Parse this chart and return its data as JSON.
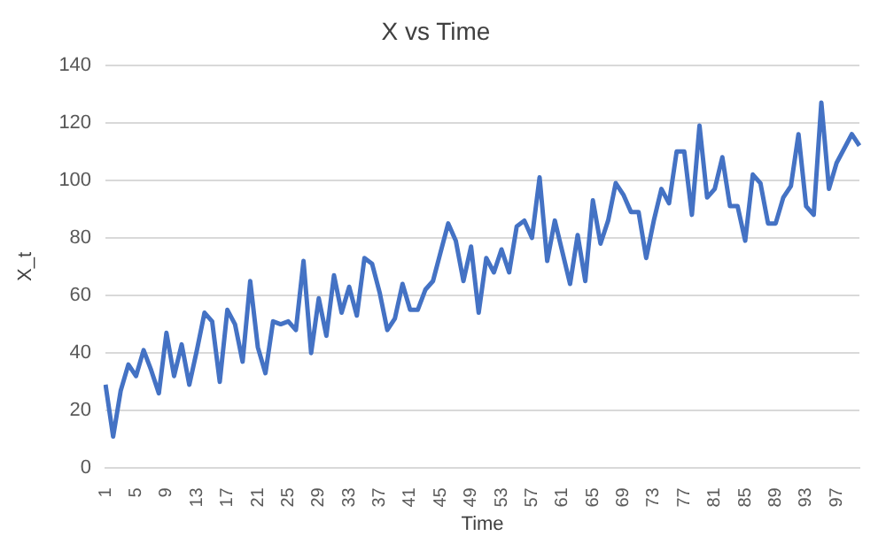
{
  "chart_data": {
    "type": "line",
    "title": "X vs Time",
    "xlabel": "Time",
    "ylabel": "X_t",
    "categories": [
      "1",
      null,
      null,
      null,
      "5",
      null,
      null,
      null,
      "9",
      null,
      null,
      null,
      "13",
      null,
      null,
      null,
      "17",
      null,
      null,
      null,
      "21",
      null,
      null,
      null,
      "25",
      null,
      null,
      null,
      "29",
      null,
      null,
      null,
      "33",
      null,
      null,
      null,
      "37",
      null,
      null,
      null,
      "41",
      null,
      null,
      null,
      "45",
      null,
      null,
      null,
      "49",
      null,
      null,
      null,
      "53",
      null,
      null,
      null,
      "57",
      null,
      null,
      null,
      "61",
      null,
      null,
      null,
      "65",
      null,
      null,
      null,
      "69",
      null,
      null,
      null,
      "73",
      null,
      null,
      null,
      "77",
      null,
      null,
      null,
      "81",
      null,
      null,
      null,
      "85",
      null,
      null,
      null,
      "89",
      null,
      null,
      null,
      "93",
      null,
      null,
      null,
      "97",
      null,
      null,
      null
    ],
    "series": [
      {
        "color": "#4472c4",
        "values": [
          29,
          11,
          27,
          36,
          32,
          41,
          34,
          26,
          47,
          32,
          43,
          29,
          41,
          54,
          51,
          30,
          55,
          50,
          37,
          65,
          42,
          33,
          51,
          50,
          51,
          48,
          72,
          40,
          59,
          46,
          67,
          54,
          63,
          53,
          73,
          71,
          61,
          48,
          52,
          64,
          55,
          55,
          62,
          65,
          75,
          85,
          79,
          65,
          77,
          54,
          73,
          68,
          76,
          68,
          84,
          86,
          80,
          101,
          72,
          86,
          75,
          64,
          81,
          65,
          93,
          78,
          86,
          99,
          95,
          89,
          89,
          73,
          86,
          97,
          92,
          110,
          110,
          88,
          119,
          94,
          97,
          108,
          91,
          91,
          79,
          102,
          99,
          85,
          85,
          94,
          98,
          116,
          91,
          88,
          127,
          97,
          106,
          111,
          116,
          112
        ]
      }
    ],
    "ylim": [
      0,
      140
    ],
    "yticks": [
      0,
      20,
      40,
      60,
      80,
      100,
      120,
      140
    ],
    "grid": "y",
    "legend": false,
    "marker": "none",
    "line_style": "solid"
  }
}
